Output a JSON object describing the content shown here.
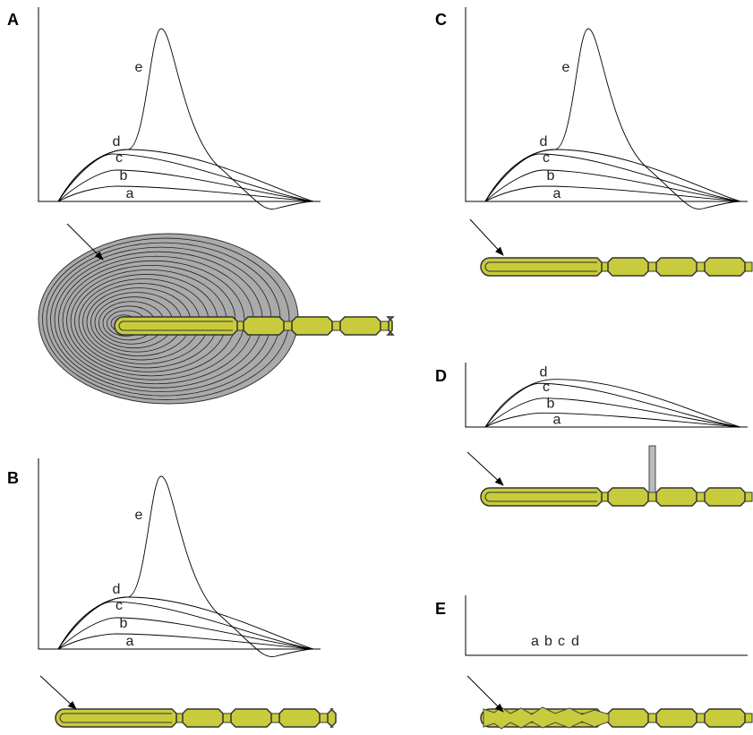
{
  "panels": [
    {
      "label": "A",
      "curve_labels": [
        "a",
        "b",
        "c",
        "d",
        "e"
      ]
    },
    {
      "label": "B",
      "curve_labels": [
        "a",
        "b",
        "c",
        "d",
        "e"
      ]
    },
    {
      "label": "C",
      "curve_labels": [
        "a",
        "b",
        "c",
        "d",
        "e"
      ]
    },
    {
      "label": "D",
      "curve_labels": [
        "a",
        "b",
        "c",
        "d"
      ]
    },
    {
      "label": "E",
      "curve_labels": [
        "a",
        "b",
        "c",
        "d"
      ]
    }
  ]
}
